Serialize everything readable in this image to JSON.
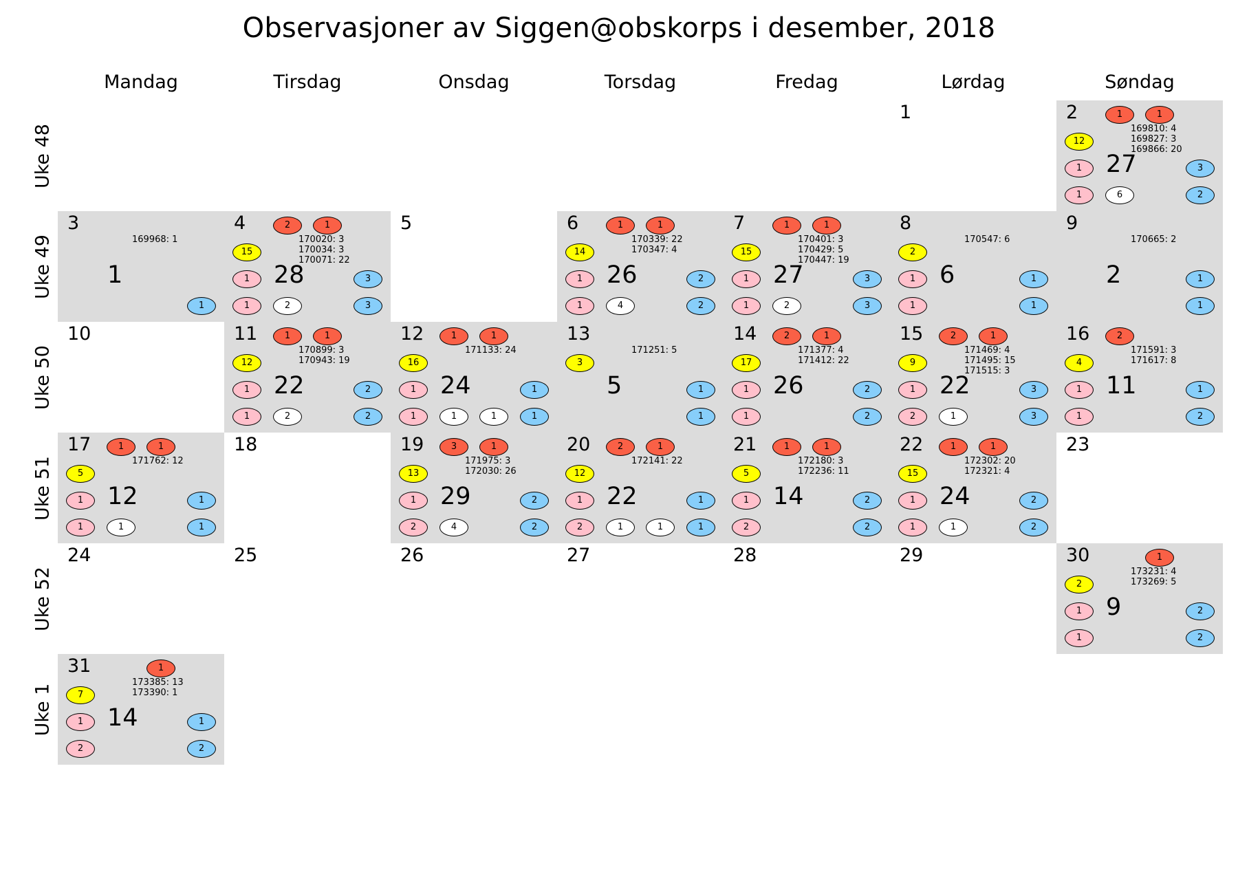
{
  "chart_data": {
    "type": "table",
    "title": "Observasjoner av Siggen@obskorps i desember, 2018",
    "day_names": [
      "Mandag",
      "Tirsdag",
      "Onsdag",
      "Torsdag",
      "Fredag",
      "Lørdag",
      "Søndag"
    ],
    "week_labels": [
      "Uke 48",
      "Uke 49",
      "Uke 50",
      "Uke 51",
      "Uke 52",
      "Uke 1"
    ],
    "colors": {
      "red": "#fa6046",
      "yellow": "#ffff00",
      "pink": "#ffc0cb",
      "white": "#ffffff",
      "blue": "#87cefa",
      "cell_bg": "#dcdcdc"
    },
    "days": [
      {
        "day": "1",
        "week": 0,
        "weekday": 5
      },
      {
        "day": "2",
        "week": 0,
        "weekday": 6,
        "total": "27",
        "ids": [
          "169810: 4",
          "169827: 3",
          "169866: 20"
        ],
        "top": [
          "1",
          "1"
        ],
        "left": [
          "12",
          "1",
          "1"
        ],
        "bottom": [
          "6"
        ],
        "right": [
          "3",
          "2"
        ]
      },
      {
        "day": "3",
        "week": 1,
        "weekday": 0,
        "total": "1",
        "ids": [
          "169968: 1"
        ],
        "top": [],
        "left": [],
        "bottom": [],
        "right": [
          "",
          "1"
        ]
      },
      {
        "day": "4",
        "week": 1,
        "weekday": 1,
        "total": "28",
        "ids": [
          "170020: 3",
          "170034: 3",
          "170071: 22"
        ],
        "top": [
          "2",
          "1"
        ],
        "left": [
          "15",
          "1",
          "1"
        ],
        "bottom": [
          "2"
        ],
        "right": [
          "3",
          "3"
        ]
      },
      {
        "day": "5",
        "week": 1,
        "weekday": 2
      },
      {
        "day": "6",
        "week": 1,
        "weekday": 3,
        "total": "26",
        "ids": [
          "170339: 22",
          "170347: 4"
        ],
        "top": [
          "1",
          "1"
        ],
        "left": [
          "14",
          "1",
          "1"
        ],
        "bottom": [
          "4"
        ],
        "right": [
          "2",
          "2"
        ]
      },
      {
        "day": "7",
        "week": 1,
        "weekday": 4,
        "total": "27",
        "ids": [
          "170401: 3",
          "170429: 5",
          "170447: 19"
        ],
        "top": [
          "1",
          "1"
        ],
        "left": [
          "15",
          "1",
          "1"
        ],
        "bottom": [
          "2"
        ],
        "right": [
          "3",
          "3"
        ]
      },
      {
        "day": "8",
        "week": 1,
        "weekday": 5,
        "total": "6",
        "ids": [
          "170547: 6"
        ],
        "top": [],
        "left": [
          "2",
          "1",
          "1"
        ],
        "bottom": [],
        "right": [
          "1",
          "1"
        ]
      },
      {
        "day": "9",
        "week": 1,
        "weekday": 6,
        "total": "2",
        "ids": [
          "170665: 2"
        ],
        "top": [],
        "left": [],
        "bottom": [],
        "right": [
          "1",
          "1"
        ]
      },
      {
        "day": "10",
        "week": 2,
        "weekday": 0
      },
      {
        "day": "11",
        "week": 2,
        "weekday": 1,
        "total": "22",
        "ids": [
          "170899: 3",
          "170943: 19"
        ],
        "top": [
          "1",
          "1"
        ],
        "left": [
          "12",
          "1",
          "1"
        ],
        "bottom": [
          "2"
        ],
        "right": [
          "2",
          "2"
        ]
      },
      {
        "day": "12",
        "week": 2,
        "weekday": 2,
        "total": "24",
        "ids": [
          "171133: 24"
        ],
        "top": [
          "1",
          "1"
        ],
        "left": [
          "16",
          "1",
          "1"
        ],
        "bottom": [
          "1",
          "1"
        ],
        "right": [
          "1",
          "1"
        ]
      },
      {
        "day": "13",
        "week": 2,
        "weekday": 3,
        "total": "5",
        "ids": [
          "171251: 5"
        ],
        "top": [],
        "left": [
          "3"
        ],
        "bottom": [],
        "right": [
          "1",
          "1"
        ]
      },
      {
        "day": "14",
        "week": 2,
        "weekday": 4,
        "total": "26",
        "ids": [
          "171377: 4",
          "171412: 22"
        ],
        "top": [
          "2",
          "1"
        ],
        "left": [
          "17",
          "1",
          "1"
        ],
        "bottom": [],
        "right": [
          "2",
          "2"
        ]
      },
      {
        "day": "15",
        "week": 2,
        "weekday": 5,
        "total": "22",
        "ids": [
          "171469: 4",
          "171495: 15",
          "171515: 3"
        ],
        "top": [
          "2",
          "1"
        ],
        "left": [
          "9",
          "1",
          "2"
        ],
        "bottom": [
          "1"
        ],
        "right": [
          "3",
          "3"
        ]
      },
      {
        "day": "16",
        "week": 2,
        "weekday": 6,
        "total": "11",
        "ids": [
          "171591: 3",
          "171617: 8"
        ],
        "top": [
          "2"
        ],
        "left": [
          "4",
          "1",
          "1"
        ],
        "bottom": [],
        "right": [
          "1",
          "2"
        ]
      },
      {
        "day": "17",
        "week": 3,
        "weekday": 0,
        "total": "12",
        "ids": [
          "171762: 12"
        ],
        "top": [
          "1",
          "1"
        ],
        "left": [
          "5",
          "1",
          "1"
        ],
        "bottom": [
          "1"
        ],
        "right": [
          "1",
          "1"
        ]
      },
      {
        "day": "18",
        "week": 3,
        "weekday": 1
      },
      {
        "day": "19",
        "week": 3,
        "weekday": 2,
        "total": "29",
        "ids": [
          "171975: 3",
          "172030: 26"
        ],
        "top": [
          "3",
          "1"
        ],
        "left": [
          "13",
          "1",
          "2"
        ],
        "bottom": [
          "4"
        ],
        "right": [
          "2",
          "2"
        ]
      },
      {
        "day": "20",
        "week": 3,
        "weekday": 3,
        "total": "22",
        "ids": [
          "172141: 22"
        ],
        "top": [
          "2",
          "1"
        ],
        "left": [
          "12",
          "1",
          "2"
        ],
        "bottom": [
          "1",
          "1"
        ],
        "right": [
          "1",
          "1"
        ]
      },
      {
        "day": "21",
        "week": 3,
        "weekday": 4,
        "total": "14",
        "ids": [
          "172180: 3",
          "172236: 11"
        ],
        "top": [
          "1",
          "1"
        ],
        "left": [
          "5",
          "1",
          "2"
        ],
        "bottom": [],
        "right": [
          "2",
          "2"
        ]
      },
      {
        "day": "22",
        "week": 3,
        "weekday": 5,
        "total": "24",
        "ids": [
          "172302: 20",
          "172321: 4"
        ],
        "top": [
          "1",
          "1"
        ],
        "left": [
          "15",
          "1",
          "1"
        ],
        "bottom": [
          "1"
        ],
        "right": [
          "2",
          "2"
        ]
      },
      {
        "day": "23",
        "week": 3,
        "weekday": 6
      },
      {
        "day": "24",
        "week": 4,
        "weekday": 0
      },
      {
        "day": "25",
        "week": 4,
        "weekday": 1
      },
      {
        "day": "26",
        "week": 4,
        "weekday": 2
      },
      {
        "day": "27",
        "week": 4,
        "weekday": 3
      },
      {
        "day": "28",
        "week": 4,
        "weekday": 4
      },
      {
        "day": "29",
        "week": 4,
        "weekday": 5
      },
      {
        "day": "30",
        "week": 4,
        "weekday": 6,
        "total": "9",
        "ids": [
          "173231: 4",
          "173269: 5"
        ],
        "top": [
          "",
          "1"
        ],
        "left": [
          "2",
          "1",
          "1"
        ],
        "bottom": [],
        "right": [
          "2",
          "2"
        ]
      },
      {
        "day": "31",
        "week": 5,
        "weekday": 0,
        "total": "14",
        "ids": [
          "173385: 13",
          "173390: 1"
        ],
        "top": [
          "",
          "1"
        ],
        "left": [
          "7",
          "1",
          "2"
        ],
        "bottom": [],
        "right": [
          "1",
          "2"
        ]
      }
    ]
  }
}
